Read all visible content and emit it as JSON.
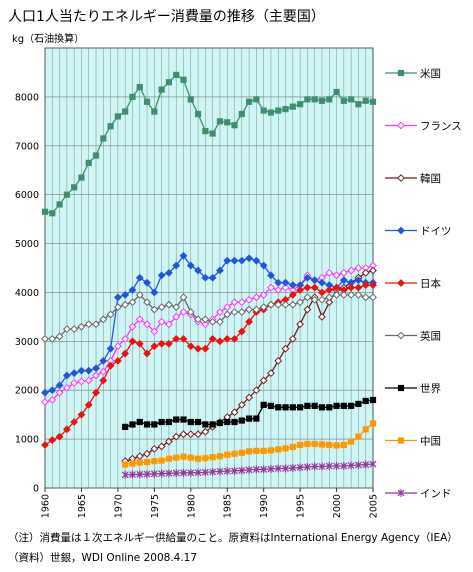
{
  "title": "人口1人当たりエネルギー消費量の推移（主要国）",
  "notes": [
    "（注）消費量は１次エネルギー供給量のこと。原資料はInternational Energy Agency（IEA）",
    "（資料）世銀，WDI Online 2008.4.17"
  ],
  "chart_data": {
    "type": "line",
    "ylabel": "kg（石油換算）",
    "xlabel": "",
    "ylim": [
      0,
      9000
    ],
    "yticks": [
      0,
      1000,
      2000,
      3000,
      4000,
      5000,
      6000,
      7000,
      8000
    ],
    "xlim": [
      1960,
      2005
    ],
    "xticks": [
      1960,
      1965,
      1970,
      1975,
      1980,
      1985,
      1990,
      1995,
      2000,
      2005
    ],
    "grid": true,
    "plot_background": "#cdf6f6",
    "legend_position": "right",
    "series": [
      {
        "name": "米国",
        "color": "#3f8f6f",
        "marker": "square",
        "x": [
          1960,
          1961,
          1962,
          1963,
          1964,
          1965,
          1966,
          1967,
          1968,
          1969,
          1970,
          1971,
          1972,
          1973,
          1974,
          1975,
          1976,
          1977,
          1978,
          1979,
          1980,
          1981,
          1982,
          1983,
          1984,
          1985,
          1986,
          1987,
          1988,
          1989,
          1990,
          1991,
          1992,
          1993,
          1994,
          1995,
          1996,
          1997,
          1998,
          1999,
          2000,
          2001,
          2002,
          2003,
          2004,
          2005
        ],
        "y": [
          5650,
          5620,
          5800,
          6000,
          6150,
          6350,
          6650,
          6800,
          7150,
          7400,
          7600,
          7700,
          8000,
          8200,
          7900,
          7700,
          8150,
          8300,
          8450,
          8350,
          7950,
          7650,
          7300,
          7250,
          7500,
          7480,
          7420,
          7650,
          7900,
          7950,
          7720,
          7680,
          7720,
          7750,
          7800,
          7850,
          7950,
          7950,
          7920,
          7950,
          8100,
          7920,
          7950,
          7850,
          7920,
          7900
        ]
      },
      {
        "name": "フランス",
        "color": "#ff33ff",
        "marker": "diamond-open",
        "x": [
          1960,
          1961,
          1962,
          1963,
          1964,
          1965,
          1966,
          1967,
          1968,
          1969,
          1970,
          1971,
          1972,
          1973,
          1974,
          1975,
          1976,
          1977,
          1978,
          1979,
          1980,
          1981,
          1982,
          1983,
          1984,
          1985,
          1986,
          1987,
          1988,
          1989,
          1990,
          1991,
          1992,
          1993,
          1994,
          1995,
          1996,
          1997,
          1998,
          1999,
          2000,
          2001,
          2002,
          2003,
          2004,
          2005
        ],
        "y": [
          1760,
          1800,
          1950,
          2050,
          2150,
          2180,
          2200,
          2300,
          2380,
          2600,
          2900,
          3050,
          3300,
          3450,
          3350,
          3200,
          3400,
          3350,
          3500,
          3600,
          3550,
          3400,
          3350,
          3450,
          3600,
          3700,
          3800,
          3800,
          3850,
          3900,
          3950,
          4100,
          4050,
          4100,
          4050,
          4150,
          4350,
          4250,
          4300,
          4400,
          4350,
          4400,
          4450,
          4500,
          4500,
          4550
        ]
      },
      {
        "name": "韓国",
        "color": "#6e1f1f",
        "marker": "diamond-open",
        "x": [
          1971,
          1972,
          1973,
          1974,
          1975,
          1976,
          1977,
          1978,
          1979,
          1980,
          1981,
          1982,
          1983,
          1984,
          1985,
          1986,
          1987,
          1988,
          1989,
          1990,
          1991,
          1992,
          1993,
          1994,
          1995,
          1996,
          1997,
          1998,
          1999,
          2000,
          2001,
          2002,
          2003,
          2004,
          2005
        ],
        "y": [
          550,
          600,
          650,
          700,
          800,
          850,
          950,
          1050,
          1100,
          1100,
          1100,
          1150,
          1250,
          1350,
          1450,
          1550,
          1700,
          1850,
          2000,
          2200,
          2350,
          2600,
          2850,
          3050,
          3350,
          3650,
          3900,
          3500,
          3800,
          4050,
          4100,
          4200,
          4300,
          4400,
          4450
        ]
      },
      {
        "name": "ドイツ",
        "color": "#2255dd",
        "marker": "diamond",
        "x": [
          1960,
          1961,
          1962,
          1963,
          1964,
          1965,
          1966,
          1967,
          1968,
          1969,
          1970,
          1971,
          1972,
          1973,
          1974,
          1975,
          1976,
          1977,
          1978,
          1979,
          1980,
          1981,
          1982,
          1983,
          1984,
          1985,
          1986,
          1987,
          1988,
          1989,
          1990,
          1991,
          1992,
          1993,
          1994,
          1995,
          1996,
          1997,
          1998,
          1999,
          2000,
          2001,
          2002,
          2003,
          2004,
          2005
        ],
        "y": [
          1950,
          2000,
          2100,
          2300,
          2350,
          2400,
          2400,
          2450,
          2600,
          2850,
          3900,
          3950,
          4050,
          4300,
          4200,
          4000,
          4350,
          4400,
          4550,
          4750,
          4550,
          4450,
          4300,
          4300,
          4450,
          4650,
          4650,
          4650,
          4700,
          4650,
          4550,
          4350,
          4200,
          4200,
          4150,
          4150,
          4300,
          4250,
          4200,
          4150,
          4100,
          4250,
          4200,
          4250,
          4200,
          4200
        ]
      },
      {
        "name": "日本",
        "color": "#ee1111",
        "marker": "diamond",
        "x": [
          1960,
          1961,
          1962,
          1963,
          1964,
          1965,
          1966,
          1967,
          1968,
          1969,
          1970,
          1971,
          1972,
          1973,
          1974,
          1975,
          1976,
          1977,
          1978,
          1979,
          1980,
          1981,
          1982,
          1983,
          1984,
          1985,
          1986,
          1987,
          1988,
          1989,
          1990,
          1991,
          1992,
          1993,
          1994,
          1995,
          1996,
          1997,
          1998,
          1999,
          2000,
          2001,
          2002,
          2003,
          2004,
          2005
        ],
        "y": [
          880,
          980,
          1050,
          1200,
          1350,
          1500,
          1700,
          1950,
          2200,
          2500,
          2600,
          2750,
          3000,
          2950,
          2750,
          2900,
          2950,
          2950,
          3050,
          3050,
          2900,
          2850,
          2850,
          3050,
          3000,
          3050,
          3050,
          3200,
          3400,
          3600,
          3650,
          3750,
          3800,
          3850,
          3950,
          4050,
          4100,
          4100,
          4000,
          4050,
          4100,
          4050,
          4100,
          4100,
          4150,
          4150
        ]
      },
      {
        "name": "英国",
        "color": "#666666",
        "marker": "diamond-open",
        "x": [
          1960,
          1961,
          1962,
          1963,
          1964,
          1965,
          1966,
          1967,
          1968,
          1969,
          1970,
          1971,
          1972,
          1973,
          1974,
          1975,
          1976,
          1977,
          1978,
          1979,
          1980,
          1981,
          1982,
          1983,
          1984,
          1985,
          1986,
          1987,
          1988,
          1989,
          1990,
          1991,
          1992,
          1993,
          1994,
          1995,
          1996,
          1997,
          1998,
          1999,
          2000,
          2001,
          2002,
          2003,
          2004,
          2005
        ],
        "y": [
          3050,
          3050,
          3100,
          3250,
          3250,
          3300,
          3350,
          3350,
          3450,
          3550,
          3700,
          3750,
          3800,
          3950,
          3800,
          3650,
          3700,
          3750,
          3700,
          3900,
          3600,
          3450,
          3450,
          3400,
          3400,
          3550,
          3600,
          3600,
          3650,
          3650,
          3700,
          3750,
          3750,
          3750,
          3750,
          3800,
          3900,
          3850,
          3850,
          3900,
          3950,
          3950,
          3950,
          3950,
          3900,
          3900
        ]
      },
      {
        "name": "世界",
        "color": "#000000",
        "marker": "square",
        "x": [
          1971,
          1972,
          1973,
          1974,
          1975,
          1976,
          1977,
          1978,
          1979,
          1980,
          1981,
          1982,
          1983,
          1984,
          1985,
          1986,
          1987,
          1988,
          1989,
          1990,
          1991,
          1992,
          1993,
          1994,
          1995,
          1996,
          1997,
          1998,
          1999,
          2000,
          2001,
          2002,
          2003,
          2004,
          2005
        ],
        "y": [
          1250,
          1300,
          1350,
          1300,
          1300,
          1350,
          1350,
          1400,
          1400,
          1350,
          1350,
          1300,
          1300,
          1330,
          1350,
          1350,
          1380,
          1420,
          1420,
          1700,
          1680,
          1650,
          1650,
          1650,
          1650,
          1680,
          1680,
          1650,
          1650,
          1680,
          1680,
          1680,
          1720,
          1780,
          1800
        ]
      },
      {
        "name": "中国",
        "color": "#ff9900",
        "marker": "square",
        "x": [
          1971,
          1972,
          1973,
          1974,
          1975,
          1976,
          1977,
          1978,
          1979,
          1980,
          1981,
          1982,
          1983,
          1984,
          1985,
          1986,
          1987,
          1988,
          1989,
          1990,
          1991,
          1992,
          1993,
          1994,
          1995,
          1996,
          1997,
          1998,
          1999,
          2000,
          2001,
          2002,
          2003,
          2004,
          2005
        ],
        "y": [
          480,
          500,
          520,
          530,
          550,
          560,
          600,
          620,
          640,
          620,
          600,
          610,
          630,
          650,
          680,
          700,
          720,
          750,
          760,
          760,
          770,
          790,
          810,
          840,
          880,
          900,
          900,
          890,
          880,
          870,
          880,
          950,
          1050,
          1200,
          1320
        ]
      },
      {
        "name": "インド",
        "color": "#993399",
        "marker": "star",
        "x": [
          1971,
          1972,
          1973,
          1974,
          1975,
          1976,
          1977,
          1978,
          1979,
          1980,
          1981,
          1982,
          1983,
          1984,
          1985,
          1986,
          1987,
          1988,
          1989,
          1990,
          1991,
          1992,
          1993,
          1994,
          1995,
          1996,
          1997,
          1998,
          1999,
          2000,
          2001,
          2002,
          2003,
          2004,
          2005
        ],
        "y": [
          270,
          275,
          280,
          285,
          290,
          295,
          300,
          305,
          310,
          310,
          315,
          320,
          330,
          340,
          345,
          350,
          360,
          370,
          380,
          380,
          390,
          400,
          400,
          410,
          420,
          430,
          440,
          440,
          450,
          450,
          450,
          460,
          470,
          480,
          490
        ]
      }
    ]
  }
}
